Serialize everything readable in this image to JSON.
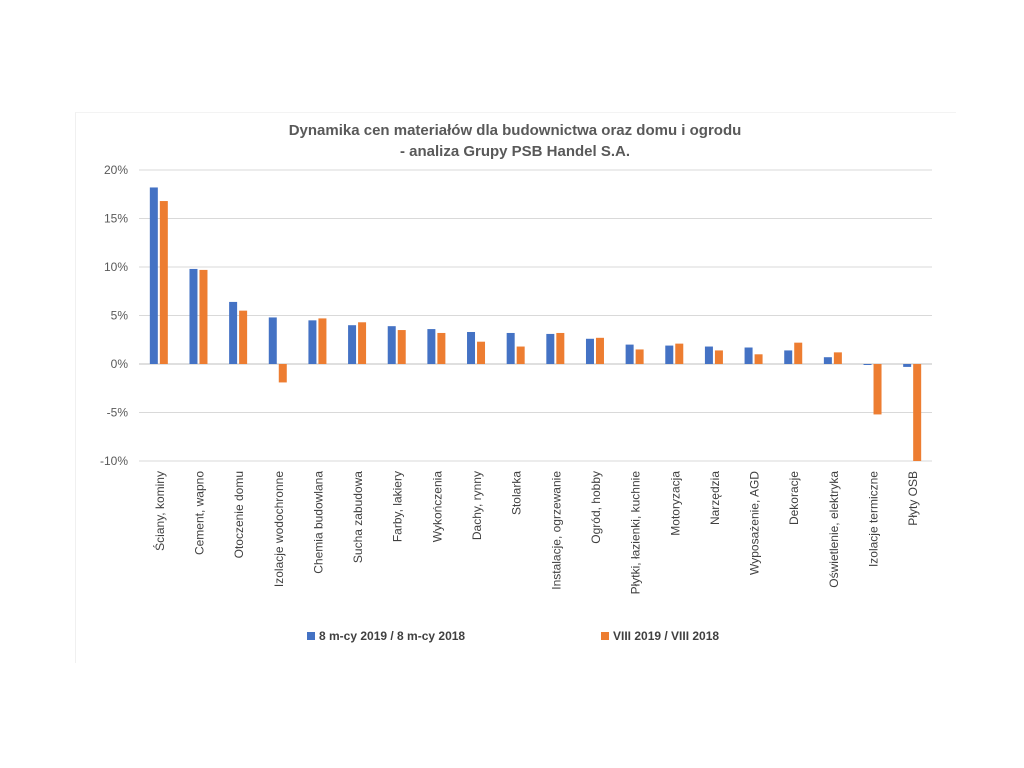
{
  "chart_data": {
    "type": "bar",
    "title": [
      "Dynamika cen materiałów dla budownictwa oraz domu i ogrodu",
      "- analiza Grupy PSB Handel S.A."
    ],
    "xlabel": "",
    "ylabel": "",
    "ylim": [
      -10,
      20
    ],
    "yticks": [
      "-10%",
      "-5%",
      "0%",
      "5%",
      "10%",
      "15%",
      "20%"
    ],
    "ytick_values": [
      -10,
      -5,
      0,
      5,
      10,
      15,
      20
    ],
    "grid": true,
    "legend_position": "bottom",
    "categories": [
      "Ściany, kominy",
      "Cement, wapno",
      "Otoczenie domu",
      "Izolacje wodochronne",
      "Chemia budowlana",
      "Sucha zabudowa",
      "Farby, lakiery",
      "Wykończenia",
      "Dachy, rynny",
      "Stolarka",
      "Instalacje, ogrzewanie",
      "Ogród, hobby",
      "Płytki, łazienki, kuchnie",
      "Motoryzacja",
      "Narzędzia",
      "Wyposażenie, AGD",
      "Dekoracje",
      "Oświetlenie, elektryka",
      "Izolacje termiczne",
      "Płyty OSB"
    ],
    "series": [
      {
        "name": "8 m-cy 2019 / 8 m-cy 2018",
        "color": "#4472C4",
        "values": [
          18.2,
          9.8,
          6.4,
          4.8,
          4.5,
          4.0,
          3.9,
          3.6,
          3.3,
          3.2,
          3.1,
          2.6,
          2.0,
          1.9,
          1.8,
          1.7,
          1.4,
          0.7,
          -0.1,
          -0.3
        ]
      },
      {
        "name": "VIII 2019 / VIII 2018",
        "color": "#ED7D31",
        "values": [
          16.8,
          9.7,
          5.5,
          -1.9,
          4.7,
          4.3,
          3.5,
          3.2,
          2.3,
          1.8,
          3.2,
          2.7,
          1.5,
          2.1,
          1.4,
          1.0,
          2.2,
          1.2,
          -5.2,
          -10.0
        ]
      }
    ]
  }
}
